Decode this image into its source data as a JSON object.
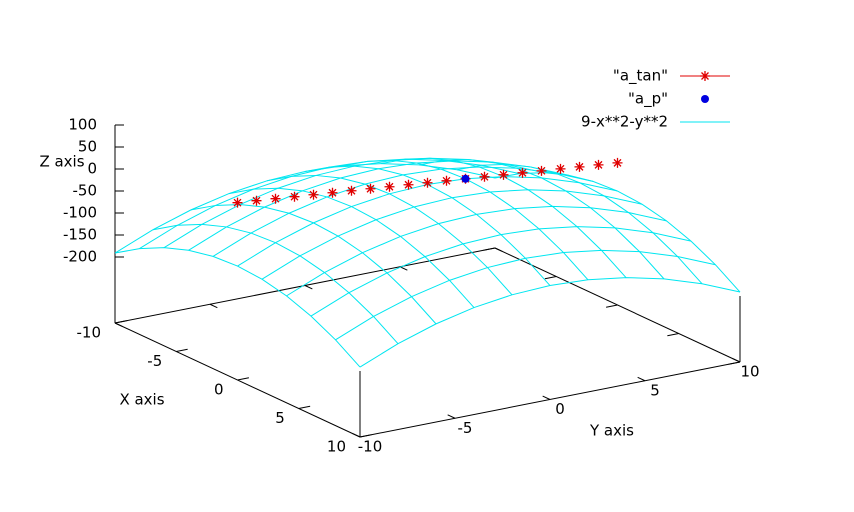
{
  "chart_data": {
    "type": "surface3d",
    "xlabel": "X axis",
    "ylabel": "Y axis",
    "zlabel": "Z axis",
    "xlim": [
      -10,
      10
    ],
    "ylim": [
      -10,
      10
    ],
    "zlim": [
      -200,
      100
    ],
    "xticks": [
      -10,
      -5,
      0,
      5,
      10
    ],
    "yticks": [
      -10,
      -5,
      0,
      5,
      10
    ],
    "zticks": [
      100,
      50,
      0,
      -50,
      -100,
      -150,
      -200
    ],
    "legend": "top-right",
    "series": [
      {
        "name": "\"a_tan\"",
        "type": "points",
        "marker": "asterisk",
        "color": "#e00000",
        "x": [
          0,
          0,
          0,
          0,
          0,
          0,
          0,
          0,
          0,
          0,
          0,
          0,
          0,
          0,
          0,
          0,
          0,
          0,
          0,
          0,
          0
        ],
        "y": [
          -10,
          -9,
          -8,
          -7,
          -6,
          -5,
          -4,
          -3,
          -2,
          -1,
          0,
          1,
          2,
          3,
          4,
          5,
          6,
          7,
          8,
          9,
          10
        ],
        "z": [
          53,
          49,
          45,
          41,
          37,
          33,
          29,
          25,
          21,
          17,
          13,
          9,
          5,
          1,
          -3,
          -7,
          -11,
          -15,
          -19,
          -23,
          -27
        ]
      },
      {
        "name": "\"a_p\"",
        "type": "points",
        "marker": "dot",
        "color": "#0000e0",
        "x": [
          0
        ],
        "y": [
          2
        ],
        "z": [
          5
        ]
      },
      {
        "name": "9-x**2-y**2",
        "type": "mesh",
        "color": "#00e6f0",
        "x": [
          -10,
          -8,
          -6,
          -4,
          -2,
          0,
          2,
          4,
          6,
          8,
          10
        ],
        "y": [
          -10,
          -8,
          -6,
          -4,
          -2,
          0,
          2,
          4,
          6,
          8,
          10
        ],
        "z": [
          [
            -191,
            -155,
            -127,
            -107,
            -95,
            -91,
            -95,
            -107,
            -127,
            -155,
            -191
          ],
          [
            -155,
            -119,
            -91,
            -71,
            -59,
            -55,
            -59,
            -71,
            -91,
            -119,
            -155
          ],
          [
            -127,
            -91,
            -63,
            -43,
            -31,
            -27,
            -31,
            -43,
            -63,
            -91,
            -127
          ],
          [
            -107,
            -71,
            -43,
            -23,
            -11,
            -7,
            -11,
            -23,
            -43,
            -71,
            -107
          ],
          [
            -95,
            -59,
            -31,
            -11,
            1,
            5,
            1,
            -11,
            -31,
            -59,
            -95
          ],
          [
            -91,
            -55,
            -27,
            -7,
            5,
            9,
            5,
            -7,
            -27,
            -55,
            -91
          ],
          [
            -95,
            -59,
            -31,
            -11,
            1,
            5,
            1,
            -11,
            -31,
            -59,
            -95
          ],
          [
            -107,
            -71,
            -43,
            -23,
            -11,
            -7,
            -11,
            -23,
            -43,
            -71,
            -107
          ],
          [
            -127,
            -91,
            -63,
            -43,
            -31,
            -27,
            -31,
            -43,
            -63,
            -91,
            -127
          ],
          [
            -155,
            -119,
            -91,
            -71,
            -59,
            -55,
            -59,
            -71,
            -91,
            -119,
            -155
          ],
          [
            -191,
            -155,
            -127,
            -107,
            -95,
            -91,
            -95,
            -107,
            -127,
            -155,
            -191
          ]
        ]
      }
    ]
  }
}
